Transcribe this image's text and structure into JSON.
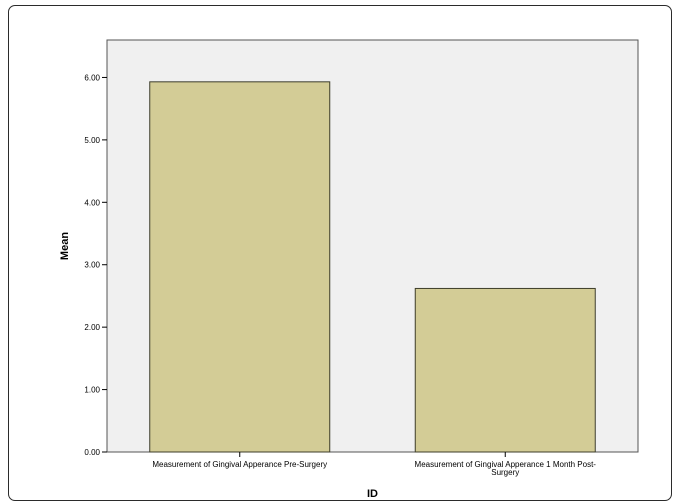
{
  "chart_data": {
    "type": "bar",
    "xlabel": "ID",
    "ylabel": "Mean",
    "categories": [
      "Measurement of Gingival Apperance Pre-Surgery",
      "Measurement of Gingival Apperance 1 Month Post-Surgery"
    ],
    "category_label_lines": [
      [
        "Measurement of Gingival Apperance Pre-Surgery"
      ],
      [
        "Measurement of Gingival Apperance 1 Month Post-",
        "Surgery"
      ]
    ],
    "values": [
      5.93,
      2.62
    ],
    "ylim": [
      0,
      6.6
    ],
    "yticks": [
      0,
      1,
      2,
      3,
      4,
      5,
      6
    ],
    "ytick_labels": [
      "0.00",
      "1.00",
      "2.00",
      "3.00",
      "4.00",
      "5.00",
      "6.00"
    ],
    "grid": false,
    "colors": {
      "bar_fill": "#d3cc96",
      "bar_stroke": "#3d3d2a",
      "plot_background": "#f0f0f0",
      "axis": "#555555"
    }
  }
}
